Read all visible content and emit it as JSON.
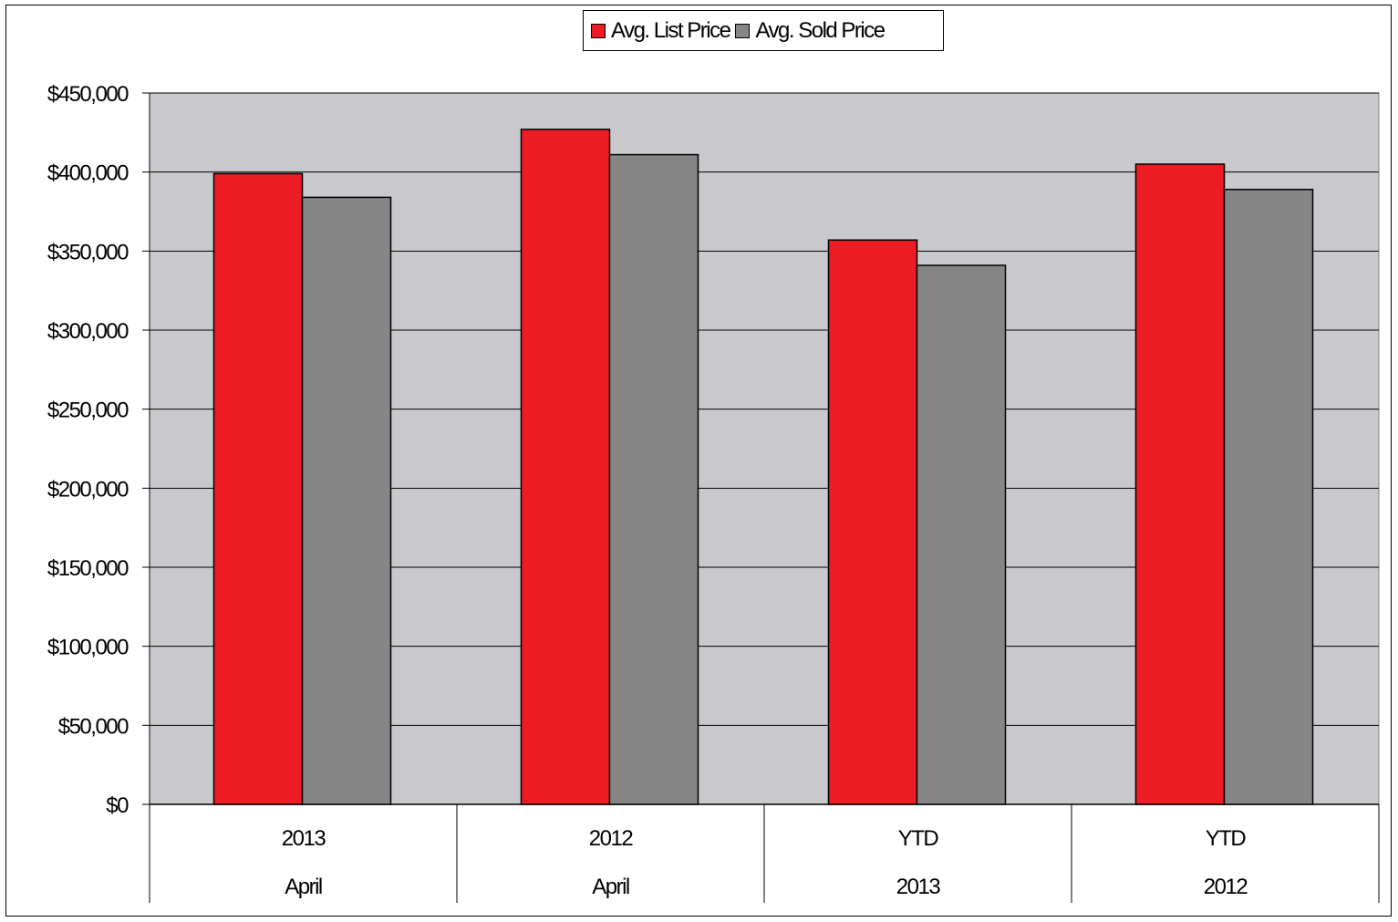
{
  "chart_data": {
    "type": "bar",
    "categories": [
      {
        "line1": "2013",
        "line2": "April"
      },
      {
        "line1": "2012",
        "line2": "April"
      },
      {
        "line1": "YTD",
        "line2": "2013"
      },
      {
        "line1": "YTD",
        "line2": "2012"
      }
    ],
    "series": [
      {
        "name": "Avg. List Price",
        "color": "#ed1c24",
        "values": [
          399000,
          427000,
          357000,
          405000
        ]
      },
      {
        "name": "Avg. Sold Price",
        "color": "#868686",
        "values": [
          384000,
          411000,
          341000,
          389000
        ]
      }
    ],
    "ylim": [
      0,
      450000
    ],
    "yticks": [
      0,
      50000,
      100000,
      150000,
      200000,
      250000,
      300000,
      350000,
      400000,
      450000
    ],
    "ytick_labels": [
      "$0",
      "$50,000",
      "$100,000",
      "$150,000",
      "$200,000",
      "$250,000",
      "$300,000",
      "$350,000",
      "$400,000",
      "$450,000"
    ],
    "plot_background": "#c9c9cd",
    "grid": true,
    "legend_position": "top-center"
  }
}
